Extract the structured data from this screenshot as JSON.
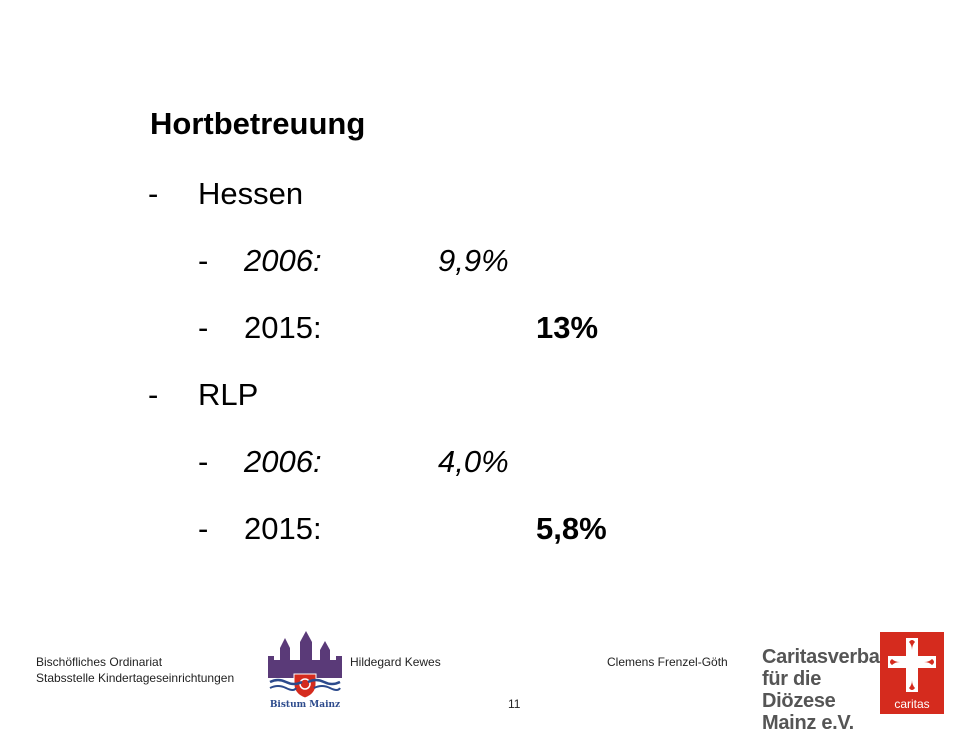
{
  "slide": {
    "title": "Hortbetreuung",
    "sections": [
      {
        "dash": "-",
        "label": "Hessen",
        "entries": [
          {
            "dash": "-",
            "year": "2006:",
            "value": "9,9%",
            "style": "italic"
          },
          {
            "dash": "-",
            "year": "2015:",
            "value": "13%",
            "style": "bold"
          }
        ]
      },
      {
        "dash": "-",
        "label": "RLP",
        "entries": [
          {
            "dash": "-",
            "year": "2006:",
            "value": "4,0%",
            "style": "italic"
          },
          {
            "dash": "-",
            "year": "2015:",
            "value": "5,8%",
            "style": "bold"
          }
        ]
      }
    ]
  },
  "footer": {
    "org_line1": "Bischöfliches Ordinariat",
    "org_line2": "Stabsstelle Kindertageseinrichtungen",
    "bistum_label": "Bistum Mainz",
    "presenter1": "Hildegard Kewes",
    "presenter2": "Clemens Frenzel-Göth",
    "page_number": "11",
    "caritas_org": "Caritasverband für die Diözese Mainz e.V.",
    "caritas_logo_text": "caritas"
  },
  "colors": {
    "caritas_red": "#d52b1e",
    "bistum_purple": "#5a3a78",
    "bistum_blue": "#2c4a8c"
  },
  "icons": {
    "bistum": "bistum-mainz-cathedral-logo",
    "caritas": "caritas-flame-cross-logo"
  }
}
